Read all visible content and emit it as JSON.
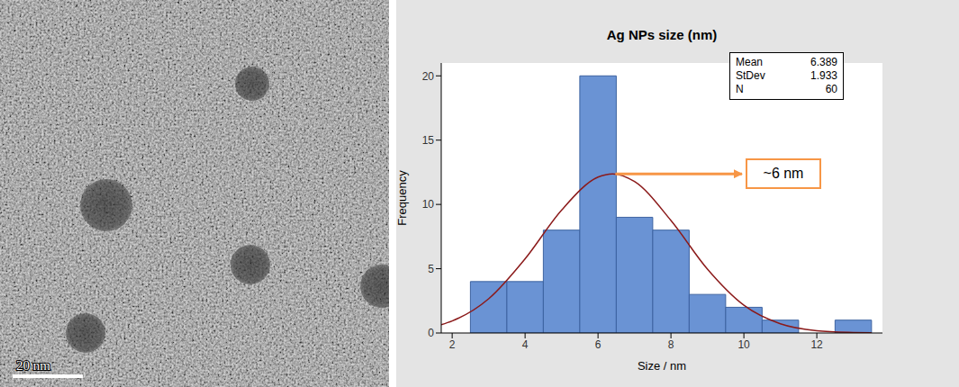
{
  "image": {
    "scale_bar_label": "20 nm"
  },
  "chart_data": {
    "type": "histogram",
    "title": "Ag NPs size (nm)",
    "x_label": "Size / nm",
    "y_label": "Frequency",
    "bins": [
      2.5,
      3.5,
      4.5,
      5.5,
      6.5,
      7.5,
      8.5,
      9.5,
      10.5,
      11.5,
      12.5,
      13.5
    ],
    "counts": [
      4,
      4,
      8,
      20,
      9,
      8,
      3,
      2,
      1,
      0,
      1
    ],
    "color": "#6a93d4",
    "fit": {
      "type": "line",
      "color": "#8b1a1a",
      "x": [
        1.7,
        2,
        3,
        4,
        5,
        6,
        6.4,
        7,
        8,
        9,
        10,
        11,
        12,
        13,
        13.5
      ],
      "values": [
        0.65,
        0.94,
        2.66,
        5.77,
        9.56,
        12.13,
        12.38,
        11.78,
        8.75,
        4.97,
        2.16,
        0.72,
        0.18,
        0.04,
        0.01
      ]
    },
    "stats": [
      {
        "label": "Mean",
        "value": 6.389
      },
      {
        "label": "StDev",
        "value": 1.933
      },
      {
        "label": "N",
        "value": 60
      }
    ],
    "annotation": {
      "text": "~6 nm",
      "color": "#f79646"
    },
    "xlim": [
      1.7,
      13.8
    ],
    "xticks": [
      2,
      4,
      6,
      8,
      10,
      12
    ],
    "ylim": [
      0,
      21
    ],
    "yticks": [
      0,
      5,
      10,
      15,
      20
    ],
    "grid": false
  }
}
